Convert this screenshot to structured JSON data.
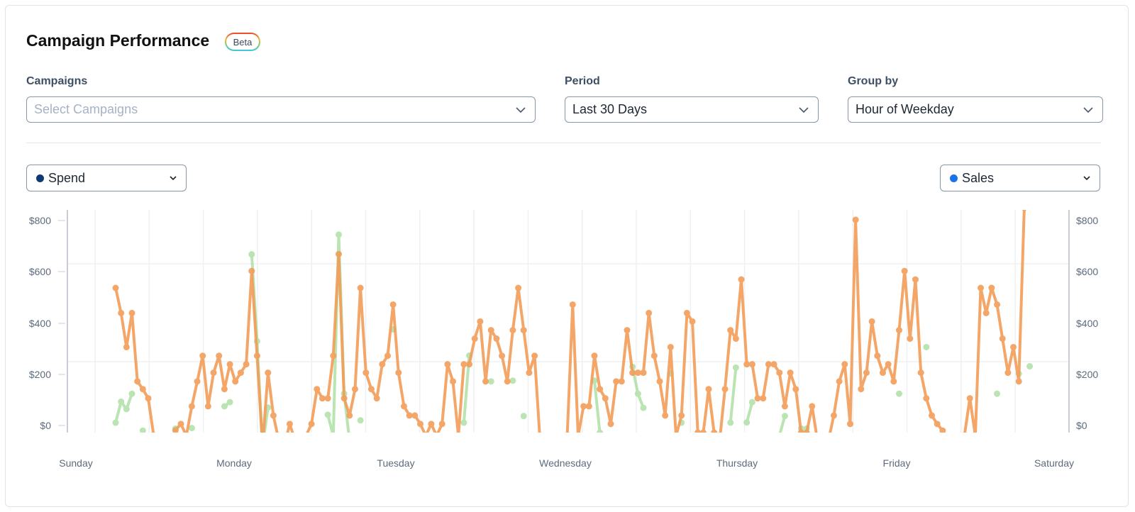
{
  "header": {
    "title": "Campaign Performance",
    "badge": "Beta"
  },
  "filters": {
    "campaigns": {
      "label": "Campaigns",
      "placeholder": "Select Campaigns",
      "value": ""
    },
    "period": {
      "label": "Period",
      "value": "Last 30 Days"
    },
    "group_by": {
      "label": "Group by",
      "value": "Hour of Weekday"
    }
  },
  "metrics": {
    "left": {
      "label": "Spend",
      "dot_color": "#0d3a73"
    },
    "right": {
      "label": "Sales",
      "dot_color": "#1a73e8"
    }
  },
  "chart_data": {
    "type": "line",
    "x_tick_labels": [
      "Sunday",
      "Monday",
      "Tuesday",
      "Wednesday",
      "Thursday",
      "Friday",
      "Saturday"
    ],
    "y_left_ticks": [
      "$800",
      "$600",
      "$400",
      "$200",
      "$0"
    ],
    "y_right_ticks": [
      "$800",
      "$600",
      "$400",
      "$200",
      "$0"
    ],
    "ylim": [
      -28,
      820
    ],
    "grid": true,
    "series": [
      {
        "color": "#f29d58",
        "values": [
          537,
          439,
          306,
          439,
          172,
          142,
          106,
          -40,
          -80,
          -80,
          -80,
          -19,
          6,
          -40,
          75,
          172,
          272,
          75,
          206,
          272,
          142,
          239,
          172,
          206,
          239,
          603,
          272,
          -80,
          206,
          39,
          -60,
          -80,
          6,
          -60,
          -80,
          -40,
          6,
          142,
          106,
          106,
          272,
          669,
          106,
          39,
          142,
          537,
          206,
          142,
          106,
          239,
          272,
          472,
          206,
          75,
          39,
          39,
          6,
          -40,
          6,
          -40,
          6,
          239,
          172,
          -40,
          239,
          239,
          339,
          406,
          172,
          372,
          339,
          272,
          172,
          372,
          537,
          372,
          206,
          272,
          -60,
          -80,
          -80,
          -80,
          -80,
          -40,
          472,
          -40,
          75,
          75,
          272,
          142,
          106,
          6,
          172,
          172,
          372,
          206,
          206,
          206,
          439,
          272,
          172,
          39,
          306,
          -40,
          39,
          439,
          406,
          -28,
          -28,
          142,
          -28,
          -60,
          142,
          372,
          339,
          570,
          239,
          239,
          106,
          106,
          239,
          239,
          206,
          75,
          206,
          142,
          -28,
          -28,
          75,
          -60,
          -80,
          -60,
          39,
          172,
          239,
          6,
          803,
          142,
          206,
          406,
          272,
          206,
          239,
          172,
          372,
          603,
          339,
          570,
          206,
          106,
          39,
          6,
          -20,
          -60,
          -80,
          -60,
          -40,
          106,
          -40,
          537,
          439,
          537,
          472,
          339,
          206,
          306,
          172,
          850
        ]
      },
      {
        "color": "#a9dea0",
        "values": [
          11,
          93,
          64,
          124,
          null,
          -20,
          null,
          null,
          null,
          null,
          null,
          -12,
          null,
          null,
          -10,
          null,
          null,
          null,
          null,
          null,
          75,
          91,
          null,
          null,
          null,
          668,
          329,
          -80,
          70,
          null,
          null,
          null,
          null,
          null,
          null,
          null,
          null,
          null,
          null,
          42,
          -40,
          745,
          124,
          -60,
          null,
          20,
          null,
          null,
          null,
          null,
          null,
          375,
          null,
          null,
          null,
          null,
          null,
          null,
          null,
          null,
          null,
          null,
          null,
          null,
          11,
          273,
          null,
          null,
          null,
          172,
          null,
          null,
          null,
          175,
          null,
          37,
          null,
          null,
          null,
          null,
          null,
          null,
          null,
          null,
          null,
          null,
          null,
          null,
          175,
          -28,
          null,
          null,
          null,
          null,
          null,
          229,
          124,
          69,
          null,
          null,
          null,
          null,
          203,
          null,
          11,
          null,
          null,
          null,
          null,
          null,
          null,
          null,
          null,
          11,
          226,
          null,
          12,
          91,
          null,
          null,
          null,
          null,
          -40,
          37,
          null,
          null,
          -12,
          -12,
          null,
          null,
          null,
          null,
          null,
          null,
          null,
          null,
          null,
          null,
          null,
          null,
          null,
          null,
          null,
          null,
          124,
          null,
          null,
          null,
          null,
          306,
          null,
          null,
          null,
          null,
          null,
          null,
          null,
          null,
          null,
          null,
          null,
          null,
          124,
          null,
          null,
          null,
          202,
          null,
          231
        ]
      }
    ]
  }
}
